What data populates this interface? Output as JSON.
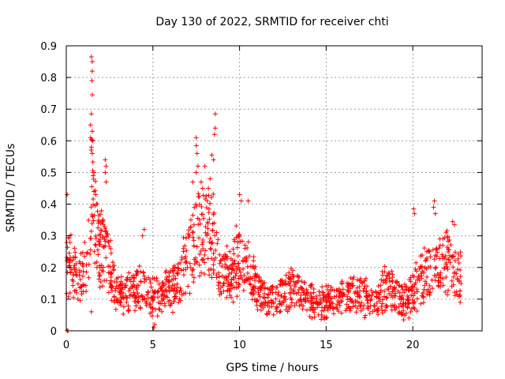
{
  "chart_data": {
    "type": "scatter",
    "title": "Day 130 of 2022, SRMTID for receiver chti",
    "xlabel": "GPS time / hours",
    "ylabel": "SRMTID / TECUs",
    "xlim": [
      0,
      24
    ],
    "ylim": [
      0,
      0.9
    ],
    "grid": true,
    "marker": "+",
    "color": "#ff0000",
    "x_ticks": [
      0,
      5,
      10,
      15,
      20
    ],
    "x_tick_labels": [
      "0",
      "5",
      "10",
      "15",
      "20"
    ],
    "y_ticks": [
      0,
      0.1,
      0.2,
      0.3,
      0.4,
      0.5,
      0.6,
      0.7,
      0.8,
      0.9
    ],
    "y_tick_labels": [
      "0",
      "0.1",
      "0.2",
      "0.3",
      "0.4",
      "0.5",
      "0.6",
      "0.7",
      "0.8",
      "0.9"
    ],
    "time_range_hours": [
      0,
      22.8
    ],
    "profile": [
      [
        0.0,
        0.2
      ],
      [
        0.3,
        0.22
      ],
      [
        0.7,
        0.16
      ],
      [
        1.0,
        0.17
      ],
      [
        1.3,
        0.3
      ],
      [
        1.5,
        0.45
      ],
      [
        1.8,
        0.3
      ],
      [
        2.2,
        0.25
      ],
      [
        2.6,
        0.18
      ],
      [
        3.0,
        0.11
      ],
      [
        3.5,
        0.12
      ],
      [
        4.0,
        0.13
      ],
      [
        4.5,
        0.13
      ],
      [
        5.0,
        0.11
      ],
      [
        5.5,
        0.12
      ],
      [
        6.0,
        0.13
      ],
      [
        6.5,
        0.16
      ],
      [
        7.0,
        0.22
      ],
      [
        7.5,
        0.3
      ],
      [
        8.0,
        0.33
      ],
      [
        8.5,
        0.3
      ],
      [
        9.0,
        0.18
      ],
      [
        9.5,
        0.17
      ],
      [
        10.0,
        0.25
      ],
      [
        10.5,
        0.2
      ],
      [
        11.0,
        0.14
      ],
      [
        11.5,
        0.1
      ],
      [
        12.0,
        0.1
      ],
      [
        12.5,
        0.12
      ],
      [
        13.0,
        0.13
      ],
      [
        13.5,
        0.12
      ],
      [
        14.0,
        0.1
      ],
      [
        14.5,
        0.09
      ],
      [
        15.0,
        0.09
      ],
      [
        15.5,
        0.1
      ],
      [
        16.0,
        0.11
      ],
      [
        16.5,
        0.11
      ],
      [
        17.0,
        0.11
      ],
      [
        17.5,
        0.1
      ],
      [
        18.0,
        0.1
      ],
      [
        18.5,
        0.14
      ],
      [
        19.0,
        0.11
      ],
      [
        19.5,
        0.09
      ],
      [
        20.0,
        0.12
      ],
      [
        20.5,
        0.17
      ],
      [
        21.0,
        0.18
      ],
      [
        21.5,
        0.2
      ],
      [
        22.0,
        0.22
      ],
      [
        22.5,
        0.17
      ],
      [
        22.8,
        0.16
      ]
    ],
    "peaks": [
      {
        "x": 1.45,
        "y": 0.865
      },
      {
        "x": 1.5,
        "y": 0.85
      },
      {
        "x": 1.5,
        "y": 0.82
      },
      {
        "x": 1.48,
        "y": 0.79
      },
      {
        "x": 1.5,
        "y": 0.745
      },
      {
        "x": 1.45,
        "y": 0.685
      },
      {
        "x": 1.4,
        "y": 0.65
      },
      {
        "x": 1.5,
        "y": 0.63
      },
      {
        "x": 1.4,
        "y": 0.61
      },
      {
        "x": 1.45,
        "y": 0.58
      },
      {
        "x": 1.5,
        "y": 0.56
      },
      {
        "x": 1.6,
        "y": 0.5
      },
      {
        "x": 1.55,
        "y": 0.49
      },
      {
        "x": 1.7,
        "y": 0.43
      },
      {
        "x": 1.75,
        "y": 0.4
      },
      {
        "x": 2.25,
        "y": 0.54
      },
      {
        "x": 2.3,
        "y": 0.52
      },
      {
        "x": 2.25,
        "y": 0.5
      },
      {
        "x": 2.3,
        "y": 0.47
      },
      {
        "x": 0.05,
        "y": 0.43
      },
      {
        "x": 8.6,
        "y": 0.685
      },
      {
        "x": 8.6,
        "y": 0.64
      },
      {
        "x": 8.55,
        "y": 0.62
      },
      {
        "x": 8.4,
        "y": 0.555
      },
      {
        "x": 8.5,
        "y": 0.54
      },
      {
        "x": 8.0,
        "y": 0.52
      },
      {
        "x": 7.5,
        "y": 0.61
      },
      {
        "x": 7.5,
        "y": 0.585
      },
      {
        "x": 7.55,
        "y": 0.56
      },
      {
        "x": 7.6,
        "y": 0.52
      },
      {
        "x": 7.5,
        "y": 0.5
      },
      {
        "x": 8.3,
        "y": 0.48
      },
      {
        "x": 8.2,
        "y": 0.45
      },
      {
        "x": 7.3,
        "y": 0.47
      },
      {
        "x": 10.0,
        "y": 0.43
      },
      {
        "x": 10.1,
        "y": 0.41
      },
      {
        "x": 10.5,
        "y": 0.41
      },
      {
        "x": 21.25,
        "y": 0.41
      },
      {
        "x": 21.2,
        "y": 0.39
      },
      {
        "x": 20.05,
        "y": 0.385
      },
      {
        "x": 20.1,
        "y": 0.37
      },
      {
        "x": 21.3,
        "y": 0.37
      },
      {
        "x": 22.3,
        "y": 0.345
      },
      {
        "x": 22.4,
        "y": 0.335
      },
      {
        "x": 1.45,
        "y": 0.06
      },
      {
        "x": 5.05,
        "y": 0.01
      },
      {
        "x": 5.1,
        "y": 0.02
      },
      {
        "x": 4.5,
        "y": 0.32
      },
      {
        "x": 4.4,
        "y": 0.3
      },
      {
        "x": 0.05,
        "y": 0.0
      },
      {
        "x": 0.1,
        "y": 0.0
      }
    ]
  }
}
